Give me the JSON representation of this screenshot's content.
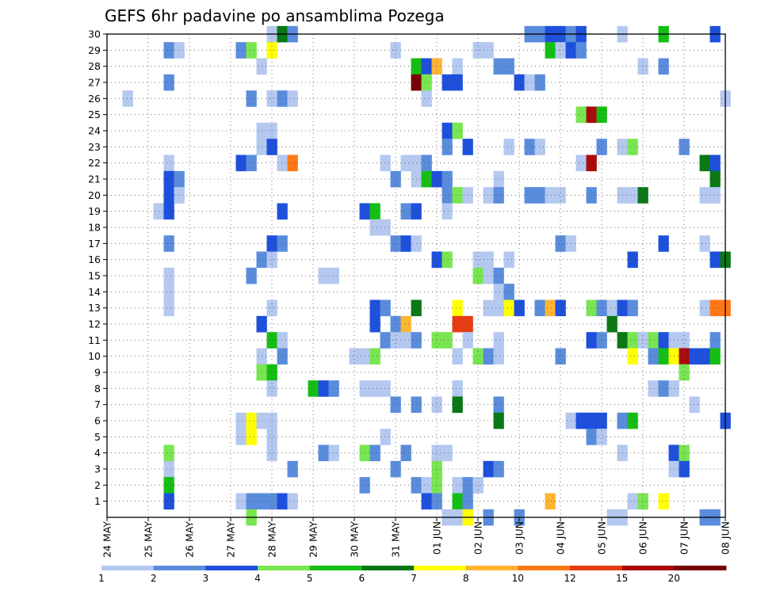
{
  "chart_data": {
    "type": "heatmap",
    "title": "GEFS 6hr padavine po ansamblima Pozega",
    "x_tick_labels": [
      "24 MAY",
      "25 MAY",
      "26 MAY",
      "27 MAY",
      "28 MAY",
      "29 MAY",
      "30 MAY",
      "31 MAY",
      "01 JUN",
      "02 JUN",
      "03 JUN",
      "04 JUN",
      "05 JUN",
      "06 JUN",
      "07 JUN",
      "08 JUN"
    ],
    "y_tick_labels": [
      "1",
      "2",
      "3",
      "4",
      "5",
      "6",
      "7",
      "8",
      "9",
      "10",
      "11",
      "12",
      "13",
      "14",
      "15",
      "16",
      "17",
      "18",
      "19",
      "20",
      "21",
      "22",
      "23",
      "24",
      "25",
      "26",
      "27",
      "28",
      "29",
      "30"
    ],
    "x_unit": "6-hour steps from 24 MAY 00Z",
    "x_range": [
      0,
      60
    ],
    "y_range": [
      0,
      30
    ],
    "grid": true,
    "legend_position": "bottom",
    "legend": {
      "labels": [
        "1",
        "2",
        "3",
        "4",
        "5",
        "6",
        "7",
        "8",
        "10",
        "12",
        "15",
        "20"
      ],
      "colors": [
        "#b4c8f0",
        "#5a8cdc",
        "#1e50dc",
        "#78e650",
        "#14be14",
        "#0a7814",
        "#ffff00",
        "#ffb432",
        "#ff7814",
        "#e63c14",
        "#aa0a0a",
        "#780000"
      ]
    },
    "class_thresholds": [
      1,
      2,
      3,
      4,
      5,
      6,
      7,
      8,
      10,
      12,
      15,
      20,
      25
    ],
    "cells": [
      [
        30,
        16,
        0
      ],
      [
        30,
        17,
        5
      ],
      [
        30,
        18,
        1
      ],
      [
        30,
        41,
        1
      ],
      [
        30,
        42,
        1
      ],
      [
        30,
        43,
        2
      ],
      [
        30,
        44,
        2
      ],
      [
        30,
        45,
        1
      ],
      [
        30,
        46,
        2
      ],
      [
        30,
        50,
        0
      ],
      [
        30,
        54,
        4
      ],
      [
        30,
        59,
        2
      ],
      [
        29,
        6,
        1
      ],
      [
        29,
        7,
        0
      ],
      [
        29,
        13,
        1
      ],
      [
        29,
        14,
        3
      ],
      [
        29,
        16,
        6
      ],
      [
        29,
        28,
        0
      ],
      [
        29,
        36,
        0
      ],
      [
        29,
        37,
        0
      ],
      [
        29,
        43,
        4
      ],
      [
        29,
        44,
        0
      ],
      [
        29,
        45,
        2
      ],
      [
        29,
        46,
        1
      ],
      [
        28,
        15,
        0
      ],
      [
        28,
        30,
        4
      ],
      [
        28,
        31,
        2
      ],
      [
        28,
        32,
        7
      ],
      [
        28,
        34,
        0
      ],
      [
        28,
        38,
        1
      ],
      [
        28,
        39,
        1
      ],
      [
        28,
        52,
        0
      ],
      [
        28,
        54,
        1
      ],
      [
        27,
        6,
        1
      ],
      [
        27,
        30,
        11
      ],
      [
        27,
        31,
        3
      ],
      [
        27,
        33,
        2
      ],
      [
        27,
        34,
        2
      ],
      [
        27,
        40,
        2
      ],
      [
        27,
        41,
        0
      ],
      [
        27,
        42,
        1
      ],
      [
        26,
        2,
        0
      ],
      [
        26,
        14,
        1
      ],
      [
        26,
        16,
        0
      ],
      [
        26,
        17,
        1
      ],
      [
        26,
        18,
        0
      ],
      [
        26,
        31,
        0
      ],
      [
        26,
        60,
        0
      ],
      [
        25,
        46,
        3
      ],
      [
        25,
        47,
        10
      ],
      [
        25,
        48,
        4
      ],
      [
        24,
        15,
        0
      ],
      [
        24,
        16,
        0
      ],
      [
        24,
        33,
        2
      ],
      [
        24,
        34,
        3
      ],
      [
        23,
        15,
        0
      ],
      [
        23,
        16,
        2
      ],
      [
        23,
        33,
        1
      ],
      [
        23,
        35,
        2
      ],
      [
        23,
        39,
        0
      ],
      [
        23,
        41,
        1
      ],
      [
        23,
        42,
        0
      ],
      [
        23,
        48,
        1
      ],
      [
        23,
        50,
        0
      ],
      [
        23,
        51,
        3
      ],
      [
        23,
        56,
        1
      ],
      [
        22,
        6,
        0
      ],
      [
        22,
        13,
        2
      ],
      [
        22,
        14,
        1
      ],
      [
        22,
        17,
        0
      ],
      [
        22,
        18,
        8
      ],
      [
        22,
        27,
        0
      ],
      [
        22,
        29,
        0
      ],
      [
        22,
        30,
        0
      ],
      [
        22,
        31,
        1
      ],
      [
        22,
        46,
        0
      ],
      [
        22,
        47,
        10
      ],
      [
        22,
        58,
        5
      ],
      [
        22,
        59,
        2
      ],
      [
        21,
        6,
        2
      ],
      [
        21,
        7,
        1
      ],
      [
        21,
        28,
        1
      ],
      [
        21,
        30,
        0
      ],
      [
        21,
        31,
        4
      ],
      [
        21,
        32,
        2
      ],
      [
        21,
        33,
        1
      ],
      [
        21,
        38,
        0
      ],
      [
        21,
        59,
        5
      ],
      [
        20,
        6,
        2
      ],
      [
        20,
        7,
        0
      ],
      [
        20,
        33,
        1
      ],
      [
        20,
        34,
        3
      ],
      [
        20,
        35,
        0
      ],
      [
        20,
        37,
        0
      ],
      [
        20,
        38,
        1
      ],
      [
        20,
        41,
        1
      ],
      [
        20,
        42,
        1
      ],
      [
        20,
        43,
        0
      ],
      [
        20,
        44,
        0
      ],
      [
        20,
        47,
        1
      ],
      [
        20,
        50,
        0
      ],
      [
        20,
        51,
        0
      ],
      [
        20,
        52,
        5
      ],
      [
        20,
        58,
        0
      ],
      [
        20,
        59,
        0
      ],
      [
        19,
        5,
        0
      ],
      [
        19,
        6,
        2
      ],
      [
        19,
        17,
        2
      ],
      [
        19,
        25,
        2
      ],
      [
        19,
        26,
        4
      ],
      [
        19,
        29,
        1
      ],
      [
        19,
        30,
        2
      ],
      [
        19,
        33,
        0
      ],
      [
        18,
        26,
        0
      ],
      [
        18,
        27,
        0
      ],
      [
        17,
        6,
        1
      ],
      [
        17,
        16,
        2
      ],
      [
        17,
        17,
        1
      ],
      [
        17,
        28,
        1
      ],
      [
        17,
        29,
        2
      ],
      [
        17,
        30,
        0
      ],
      [
        17,
        44,
        1
      ],
      [
        17,
        45,
        0
      ],
      [
        17,
        54,
        2
      ],
      [
        17,
        58,
        0
      ],
      [
        16,
        15,
        1
      ],
      [
        16,
        16,
        0
      ],
      [
        16,
        32,
        2
      ],
      [
        16,
        33,
        3
      ],
      [
        16,
        36,
        0
      ],
      [
        16,
        37,
        0
      ],
      [
        16,
        39,
        0
      ],
      [
        16,
        51,
        2
      ],
      [
        16,
        59,
        2
      ],
      [
        16,
        60,
        5
      ],
      [
        15,
        6,
        0
      ],
      [
        15,
        14,
        1
      ],
      [
        15,
        21,
        0
      ],
      [
        15,
        22,
        0
      ],
      [
        15,
        36,
        3
      ],
      [
        15,
        37,
        0
      ],
      [
        15,
        38,
        1
      ],
      [
        14,
        6,
        0
      ],
      [
        14,
        38,
        0
      ],
      [
        14,
        39,
        1
      ],
      [
        13,
        6,
        0
      ],
      [
        13,
        16,
        0
      ],
      [
        13,
        26,
        2
      ],
      [
        13,
        27,
        1
      ],
      [
        13,
        30,
        5
      ],
      [
        13,
        34,
        6
      ],
      [
        13,
        37,
        0
      ],
      [
        13,
        38,
        0
      ],
      [
        13,
        39,
        6
      ],
      [
        13,
        40,
        2
      ],
      [
        13,
        42,
        1
      ],
      [
        13,
        43,
        7
      ],
      [
        13,
        44,
        2
      ],
      [
        13,
        47,
        3
      ],
      [
        13,
        48,
        1
      ],
      [
        13,
        49,
        0
      ],
      [
        13,
        50,
        2
      ],
      [
        13,
        51,
        1
      ],
      [
        13,
        58,
        0
      ],
      [
        13,
        59,
        8
      ],
      [
        13,
        60,
        8
      ],
      [
        12,
        15,
        2
      ],
      [
        12,
        26,
        2
      ],
      [
        12,
        28,
        1
      ],
      [
        12,
        29,
        7
      ],
      [
        12,
        34,
        9
      ],
      [
        12,
        35,
        9
      ],
      [
        12,
        49,
        5
      ],
      [
        11,
        16,
        4
      ],
      [
        11,
        17,
        0
      ],
      [
        11,
        27,
        1
      ],
      [
        11,
        28,
        0
      ],
      [
        11,
        29,
        0
      ],
      [
        11,
        30,
        1
      ],
      [
        11,
        32,
        3
      ],
      [
        11,
        33,
        3
      ],
      [
        11,
        35,
        0
      ],
      [
        11,
        38,
        0
      ],
      [
        11,
        47,
        2
      ],
      [
        11,
        48,
        1
      ],
      [
        11,
        50,
        5
      ],
      [
        11,
        51,
        3
      ],
      [
        11,
        52,
        0
      ],
      [
        11,
        53,
        3
      ],
      [
        11,
        54,
        2
      ],
      [
        11,
        55,
        0
      ],
      [
        11,
        56,
        0
      ],
      [
        11,
        59,
        1
      ],
      [
        10,
        15,
        0
      ],
      [
        10,
        17,
        1
      ],
      [
        10,
        24,
        0
      ],
      [
        10,
        25,
        0
      ],
      [
        10,
        26,
        3
      ],
      [
        10,
        34,
        0
      ],
      [
        10,
        36,
        3
      ],
      [
        10,
        37,
        1
      ],
      [
        10,
        38,
        0
      ],
      [
        10,
        44,
        1
      ],
      [
        10,
        51,
        6
      ],
      [
        10,
        53,
        1
      ],
      [
        10,
        54,
        4
      ],
      [
        10,
        55,
        6
      ],
      [
        10,
        56,
        10
      ],
      [
        10,
        57,
        2
      ],
      [
        10,
        58,
        2
      ],
      [
        10,
        59,
        4
      ],
      [
        9,
        15,
        3
      ],
      [
        9,
        16,
        4
      ],
      [
        9,
        56,
        3
      ],
      [
        8,
        16,
        0
      ],
      [
        8,
        20,
        4
      ],
      [
        8,
        21,
        2
      ],
      [
        8,
        22,
        1
      ],
      [
        8,
        25,
        0
      ],
      [
        8,
        26,
        0
      ],
      [
        8,
        27,
        0
      ],
      [
        8,
        34,
        0
      ],
      [
        8,
        53,
        0
      ],
      [
        8,
        54,
        1
      ],
      [
        8,
        55,
        0
      ],
      [
        7,
        28,
        1
      ],
      [
        7,
        30,
        1
      ],
      [
        7,
        32,
        0
      ],
      [
        7,
        34,
        5
      ],
      [
        7,
        38,
        1
      ],
      [
        7,
        57,
        0
      ],
      [
        6,
        13,
        0
      ],
      [
        6,
        14,
        6
      ],
      [
        6,
        15,
        0
      ],
      [
        6,
        16,
        0
      ],
      [
        6,
        38,
        5
      ],
      [
        6,
        45,
        0
      ],
      [
        6,
        46,
        2
      ],
      [
        6,
        47,
        2
      ],
      [
        6,
        48,
        2
      ],
      [
        6,
        50,
        1
      ],
      [
        6,
        51,
        4
      ],
      [
        6,
        60,
        2
      ],
      [
        5,
        13,
        0
      ],
      [
        5,
        14,
        6
      ],
      [
        5,
        16,
        0
      ],
      [
        5,
        27,
        0
      ],
      [
        5,
        47,
        1
      ],
      [
        5,
        48,
        0
      ],
      [
        4,
        6,
        3
      ],
      [
        4,
        16,
        0
      ],
      [
        4,
        21,
        1
      ],
      [
        4,
        22,
        0
      ],
      [
        4,
        25,
        3
      ],
      [
        4,
        26,
        1
      ],
      [
        4,
        29,
        1
      ],
      [
        4,
        32,
        0
      ],
      [
        4,
        33,
        0
      ],
      [
        4,
        50,
        0
      ],
      [
        4,
        55,
        2
      ],
      [
        4,
        56,
        3
      ],
      [
        3,
        6,
        0
      ],
      [
        3,
        18,
        1
      ],
      [
        3,
        28,
        1
      ],
      [
        3,
        32,
        3
      ],
      [
        3,
        37,
        2
      ],
      [
        3,
        38,
        1
      ],
      [
        3,
        55,
        0
      ],
      [
        3,
        56,
        2
      ],
      [
        2,
        6,
        4
      ],
      [
        2,
        25,
        1
      ],
      [
        2,
        30,
        1
      ],
      [
        2,
        31,
        0
      ],
      [
        2,
        32,
        3
      ],
      [
        2,
        34,
        0
      ],
      [
        2,
        35,
        1
      ],
      [
        2,
        36,
        0
      ],
      [
        1,
        6,
        2
      ],
      [
        1,
        13,
        0
      ],
      [
        1,
        14,
        1
      ],
      [
        1,
        15,
        1
      ],
      [
        1,
        16,
        1
      ],
      [
        1,
        17,
        2
      ],
      [
        1,
        18,
        0
      ],
      [
        1,
        31,
        2
      ],
      [
        1,
        32,
        1
      ],
      [
        1,
        34,
        4
      ],
      [
        1,
        35,
        1
      ],
      [
        1,
        43,
        7
      ],
      [
        1,
        51,
        0
      ],
      [
        1,
        52,
        3
      ],
      [
        1,
        54,
        6
      ],
      [
        0,
        14,
        3
      ],
      [
        0,
        33,
        0
      ],
      [
        0,
        34,
        0
      ],
      [
        0,
        35,
        6
      ],
      [
        0,
        37,
        1
      ],
      [
        0,
        40,
        1
      ],
      [
        0,
        49,
        0
      ],
      [
        0,
        50,
        0
      ],
      [
        0,
        58,
        1
      ],
      [
        0,
        59,
        1
      ]
    ]
  }
}
